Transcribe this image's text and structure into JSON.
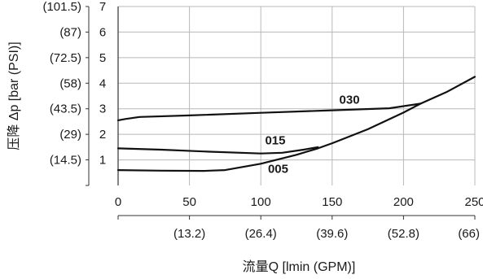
{
  "chart_data": {
    "type": "line",
    "xlabel": "流量Q [lmin (GPM)]",
    "ylabel": "压降 Δp [bar (PSI)]",
    "xlim": [
      0,
      250
    ],
    "ylim": [
      0,
      7
    ],
    "grid": true,
    "x_ticks": [
      {
        "value": 0,
        "label": "0"
      },
      {
        "value": 50,
        "label": "50"
      },
      {
        "value": 100,
        "label": "100"
      },
      {
        "value": 150,
        "label": "150"
      },
      {
        "value": 200,
        "label": "200"
      },
      {
        "value": 250,
        "label": "250"
      }
    ],
    "x_secondary_ticks": [
      {
        "value": 50,
        "label": "(13.2)"
      },
      {
        "value": 100,
        "label": "(26.4)"
      },
      {
        "value": 150,
        "label": "(39.6)"
      },
      {
        "value": 200,
        "label": "(52.8)"
      },
      {
        "value": 250,
        "label": "(66)"
      }
    ],
    "y_ticks": [
      {
        "value": 1,
        "label": "1"
      },
      {
        "value": 2,
        "label": "2"
      },
      {
        "value": 3,
        "label": "3"
      },
      {
        "value": 4,
        "label": "4"
      },
      {
        "value": 5,
        "label": "5"
      },
      {
        "value": 6,
        "label": "6"
      },
      {
        "value": 7,
        "label": "7"
      }
    ],
    "y_secondary_ticks": [
      {
        "value": 1,
        "label": "(14.5)"
      },
      {
        "value": 2,
        "label": "(29)"
      },
      {
        "value": 3,
        "label": "(43.5)"
      },
      {
        "value": 4,
        "label": "(58)"
      },
      {
        "value": 5,
        "label": "(72.5)"
      },
      {
        "value": 6,
        "label": "(87)"
      },
      {
        "value": 7,
        "label": "(101.5)"
      }
    ],
    "series": [
      {
        "name": "005",
        "label_at": [
          105,
          0.5
        ],
        "points": [
          [
            0,
            0.6
          ],
          [
            30,
            0.58
          ],
          [
            60,
            0.57
          ],
          [
            75,
            0.6
          ],
          [
            100,
            0.85
          ],
          [
            125,
            1.2
          ],
          [
            140,
            1.45
          ],
          [
            150,
            1.65
          ],
          [
            175,
            2.2
          ],
          [
            200,
            2.85
          ],
          [
            212,
            3.2
          ],
          [
            230,
            3.65
          ],
          [
            250,
            4.25
          ]
        ]
      },
      {
        "name": "015",
        "label_at": [
          103,
          1.6
        ],
        "points": [
          [
            0,
            1.45
          ],
          [
            30,
            1.4
          ],
          [
            60,
            1.33
          ],
          [
            100,
            1.25
          ],
          [
            115,
            1.28
          ],
          [
            130,
            1.4
          ],
          [
            140,
            1.5
          ]
        ]
      },
      {
        "name": "030",
        "label_at": [
          155,
          3.2
        ],
        "points": [
          [
            0,
            2.55
          ],
          [
            5,
            2.6
          ],
          [
            15,
            2.68
          ],
          [
            50,
            2.74
          ],
          [
            100,
            2.84
          ],
          [
            150,
            2.94
          ],
          [
            190,
            3.02
          ],
          [
            212,
            3.2
          ]
        ]
      }
    ]
  }
}
